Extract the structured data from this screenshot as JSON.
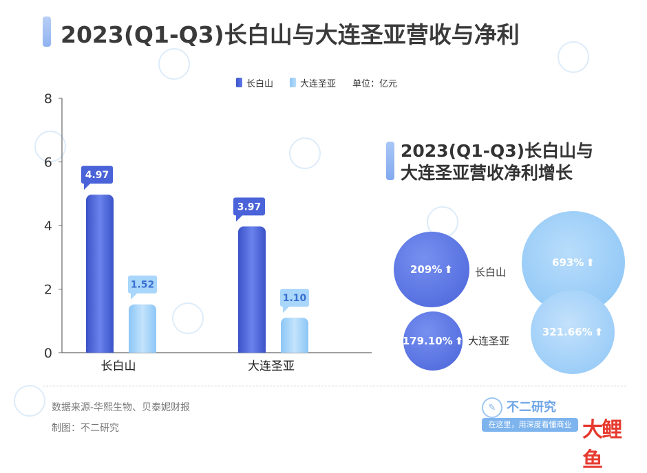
{
  "title": "2023(Q1-Q3)长白山与大连圣亚营收与净利",
  "legend": {
    "series_a": "长白山",
    "series_b": "大连圣亚",
    "unit": "单位：亿元"
  },
  "chart_data": [
    {
      "type": "bar",
      "categories": [
        "长白山",
        "大连圣亚"
      ],
      "series": [
        {
          "name": "长白山",
          "values": [
            4.97,
            3.97
          ]
        },
        {
          "name": "大连圣亚",
          "values": [
            1.52,
            1.1
          ]
        }
      ],
      "data_labels": [
        [
          "4.97",
          "3.97"
        ],
        [
          "1.52",
          "1.10"
        ]
      ],
      "yticks": [
        0,
        2,
        4,
        6,
        8
      ],
      "ylim": [
        0,
        8
      ],
      "grid": false,
      "legend_position": "top"
    },
    {
      "type": "bubble",
      "title": "2023(Q1-Q3)长白山与大连圣亚营收净利增长",
      "rows": [
        {
          "label": "长白山",
          "revenue_growth": "209%",
          "net_profit_growth": "693%"
        },
        {
          "label": "大连圣亚",
          "revenue_growth": "179.10%",
          "net_profit_growth": "321.66%"
        }
      ],
      "arrow": "⬆"
    }
  ],
  "footer": {
    "source": "数据来源-华熙生物、贝泰妮财报",
    "maker": "制图：不二研究"
  },
  "logo": {
    "name": "不二研究",
    "slogan": "在这里，用深度看懂商业",
    "brand": "大鲤鱼"
  },
  "colors": {
    "series_a": "#4a63d9",
    "series_b": "#9fd0f8",
    "accent": "#8fb2f0"
  }
}
